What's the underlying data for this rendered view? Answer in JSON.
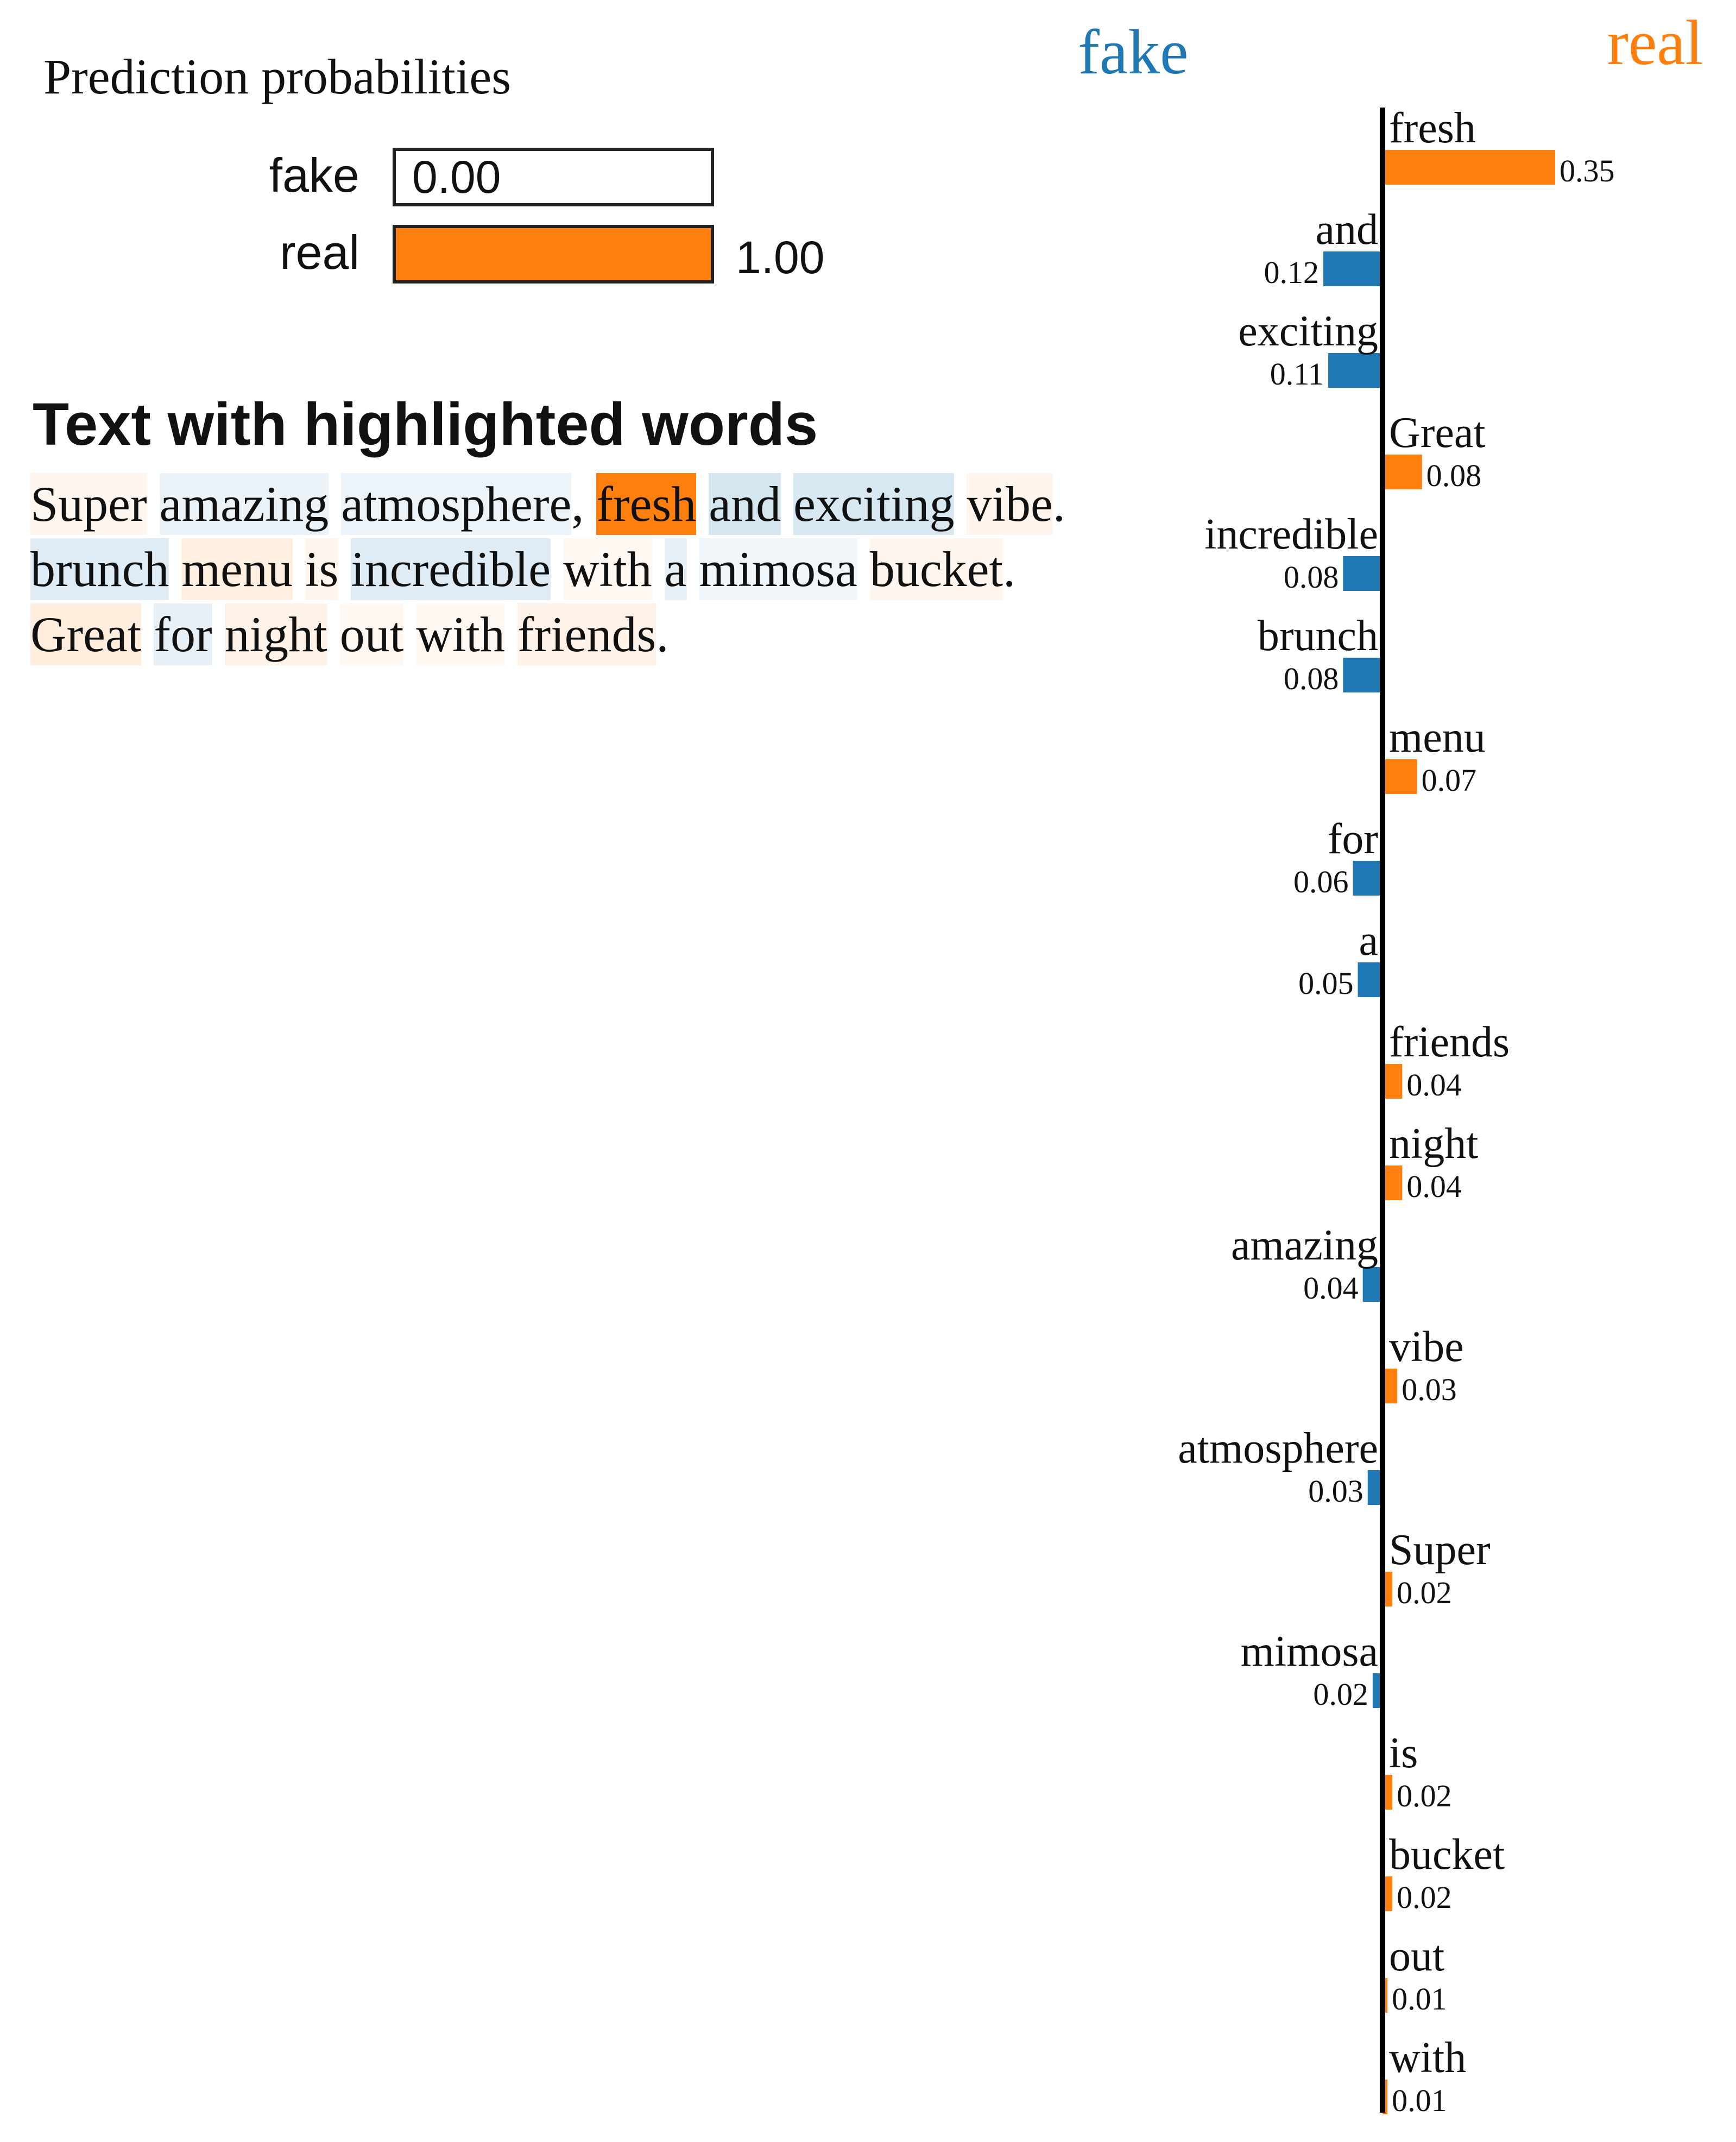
{
  "prediction": {
    "title": "Prediction probabilities",
    "classes": [
      {
        "label": "fake",
        "value": 0.0,
        "value_text": "0.00",
        "color": "#1f77b4"
      },
      {
        "label": "real",
        "value": 1.0,
        "value_text": "1.00",
        "color": "#ff7f0e"
      }
    ]
  },
  "text_section": {
    "heading": "Text with highlighted words",
    "words": [
      {
        "t": "Super",
        "w": 0.02,
        "s": " "
      },
      {
        "t": "amazing",
        "w": -0.04,
        "s": " "
      },
      {
        "t": "atmosphere",
        "w": -0.03,
        "s": ", "
      },
      {
        "t": "fresh",
        "w": 0.35,
        "s": " "
      },
      {
        "t": "and",
        "w": -0.12,
        "s": " "
      },
      {
        "t": "exciting",
        "w": -0.11,
        "s": " "
      },
      {
        "t": "vibe",
        "w": 0.03,
        "s": ". "
      },
      {
        "t": "brunch",
        "w": -0.08,
        "s": " "
      },
      {
        "t": "menu",
        "w": 0.07,
        "s": " "
      },
      {
        "t": "is",
        "w": 0.02,
        "s": " "
      },
      {
        "t": "incredible",
        "w": -0.08,
        "s": " "
      },
      {
        "t": "with",
        "w": 0.01,
        "s": " "
      },
      {
        "t": "a",
        "w": -0.05,
        "s": " "
      },
      {
        "t": "mimosa",
        "w": -0.02,
        "s": " "
      },
      {
        "t": "bucket",
        "w": 0.02,
        "s": ". "
      },
      {
        "t": "Great",
        "w": 0.08,
        "s": " "
      },
      {
        "t": "for",
        "w": -0.06,
        "s": " "
      },
      {
        "t": "night",
        "w": 0.04,
        "s": " "
      },
      {
        "t": "out",
        "w": 0.01,
        "s": " "
      },
      {
        "t": "with",
        "w": 0.01,
        "s": " "
      },
      {
        "t": "friends",
        "w": 0.04,
        "s": "."
      }
    ]
  },
  "chart_data": {
    "type": "bar",
    "orientation": "horizontal",
    "left_class": "fake",
    "right_class": "real",
    "colors": {
      "fake": "#1f77b4",
      "real": "#ff7f0e"
    },
    "categories": [
      "fresh",
      "and",
      "exciting",
      "Great",
      "incredible",
      "brunch",
      "menu",
      "for",
      "a",
      "friends",
      "night",
      "amazing",
      "vibe",
      "atmosphere",
      "Super",
      "mimosa",
      "is",
      "bucket",
      "out",
      "with"
    ],
    "values": [
      0.35,
      -0.12,
      -0.11,
      0.08,
      -0.08,
      -0.08,
      0.07,
      -0.06,
      -0.05,
      0.04,
      0.04,
      -0.04,
      0.03,
      -0.03,
      0.02,
      -0.02,
      0.02,
      0.02,
      0.01,
      0.01
    ],
    "value_labels": [
      "0.35",
      "0.12",
      "0.11",
      "0.08",
      "0.08",
      "0.08",
      "0.07",
      "0.06",
      "0.05",
      "0.04",
      "0.04",
      "0.04",
      "0.03",
      "0.03",
      "0.02",
      "0.02",
      "0.02",
      "0.02",
      "0.01",
      "0.01"
    ]
  }
}
